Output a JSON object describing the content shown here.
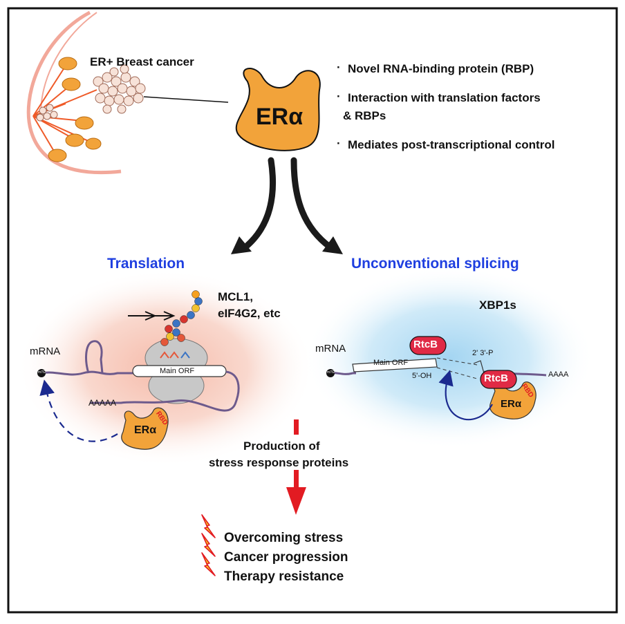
{
  "top": {
    "breast_label": "ER+ Breast cancer",
    "era_label": "ERα",
    "bullets": [
      "Novel RNA-binding protein (RBP)",
      "Interaction with translation factors",
      "& RBPs",
      "Mediates post-transcriptional control"
    ]
  },
  "left_panel": {
    "title": "Translation",
    "targets": [
      "MCL1,",
      "eIF4G2, etc"
    ],
    "mrna_label": "mRNA",
    "cap_label": "m7G",
    "orf_label": "Main ORF",
    "polya_label": "AAAAA",
    "protein_label": "ERα",
    "domain_label": "RBD"
  },
  "right_panel": {
    "title": "Unconventional splicing",
    "target": "XBP1s",
    "mrna_label": "mRNA",
    "cap_label": "m7G",
    "orf_label": "Main ORF",
    "enzyme_label": "RtcB",
    "end_label_3p": "2' 3'-P",
    "end_label_5p": "5'-OH",
    "polya_label": "AAAA",
    "protein_label": "ERα",
    "domain_label": "RBD"
  },
  "bottom": {
    "production": [
      "Production of",
      "stress response proteins"
    ],
    "outcomes": [
      "Overcoming stress",
      "Cancer progression",
      "Therapy resistance"
    ]
  },
  "colors": {
    "era_fill": "#f2a33a",
    "rtcb_fill": "#e02a45",
    "red_arrow": "#e21b22",
    "title_blue": "#1f3fe0",
    "left_glow": "#f7c9bd",
    "right_glow": "#a9d9f2"
  },
  "icons": [
    "lightning-bolt-icon"
  ]
}
